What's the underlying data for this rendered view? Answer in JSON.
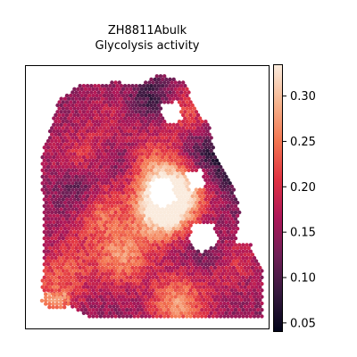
{
  "title": {
    "line1": "ZH8811Abulk",
    "line2": "Glycolysis activity"
  },
  "colormap": {
    "name": "rocket",
    "stops": [
      "#03051a",
      "#36193e",
      "#701f57",
      "#ae1759",
      "#e13342",
      "#f37651",
      "#f6b48e",
      "#faebdd"
    ]
  },
  "chart_data": {
    "type": "heatmap",
    "title": "ZH8811Abulk\nGlycolysis activity",
    "xlabel": "",
    "ylabel": "",
    "grid": false,
    "colorbar": {
      "label": "",
      "range": [
        0.04,
        0.335
      ],
      "ticks": [
        0.05,
        0.1,
        0.15,
        0.2,
        0.25,
        0.3
      ],
      "tick_labels": [
        "0.05",
        "0.10",
        "0.15",
        "0.20",
        "0.25",
        "0.30"
      ]
    },
    "spatial_hotspots": [
      {
        "x": 0.55,
        "y": 0.55,
        "value": 0.33
      },
      {
        "x": 0.62,
        "y": 0.48,
        "value": 0.32
      },
      {
        "x": 0.4,
        "y": 0.72,
        "value": 0.26
      },
      {
        "x": 0.3,
        "y": 0.55,
        "value": 0.24
      },
      {
        "x": 0.62,
        "y": 0.9,
        "value": 0.27
      },
      {
        "x": 0.82,
        "y": 0.74,
        "value": 0.21
      },
      {
        "x": 0.5,
        "y": 0.38,
        "value": 0.24
      },
      {
        "x": 0.22,
        "y": 0.35,
        "value": 0.2
      },
      {
        "x": 0.35,
        "y": 0.22,
        "value": 0.18
      },
      {
        "x": 0.2,
        "y": 0.75,
        "value": 0.2
      },
      {
        "x": 0.1,
        "y": 0.85,
        "value": 0.22
      },
      {
        "x": 0.65,
        "y": 0.18,
        "value": 0.22
      }
    ],
    "spatial_lows": [
      {
        "x": 0.22,
        "y": 0.47,
        "value": 0.08
      },
      {
        "x": 0.4,
        "y": 0.36,
        "value": 0.1
      },
      {
        "x": 0.85,
        "y": 0.38,
        "value": 0.07
      },
      {
        "x": 0.72,
        "y": 0.32,
        "value": 0.09
      },
      {
        "x": 0.52,
        "y": 0.12,
        "value": 0.08
      },
      {
        "x": 0.95,
        "y": 0.48,
        "value": 0.1
      },
      {
        "x": 0.75,
        "y": 0.7,
        "value": 0.09
      }
    ]
  }
}
